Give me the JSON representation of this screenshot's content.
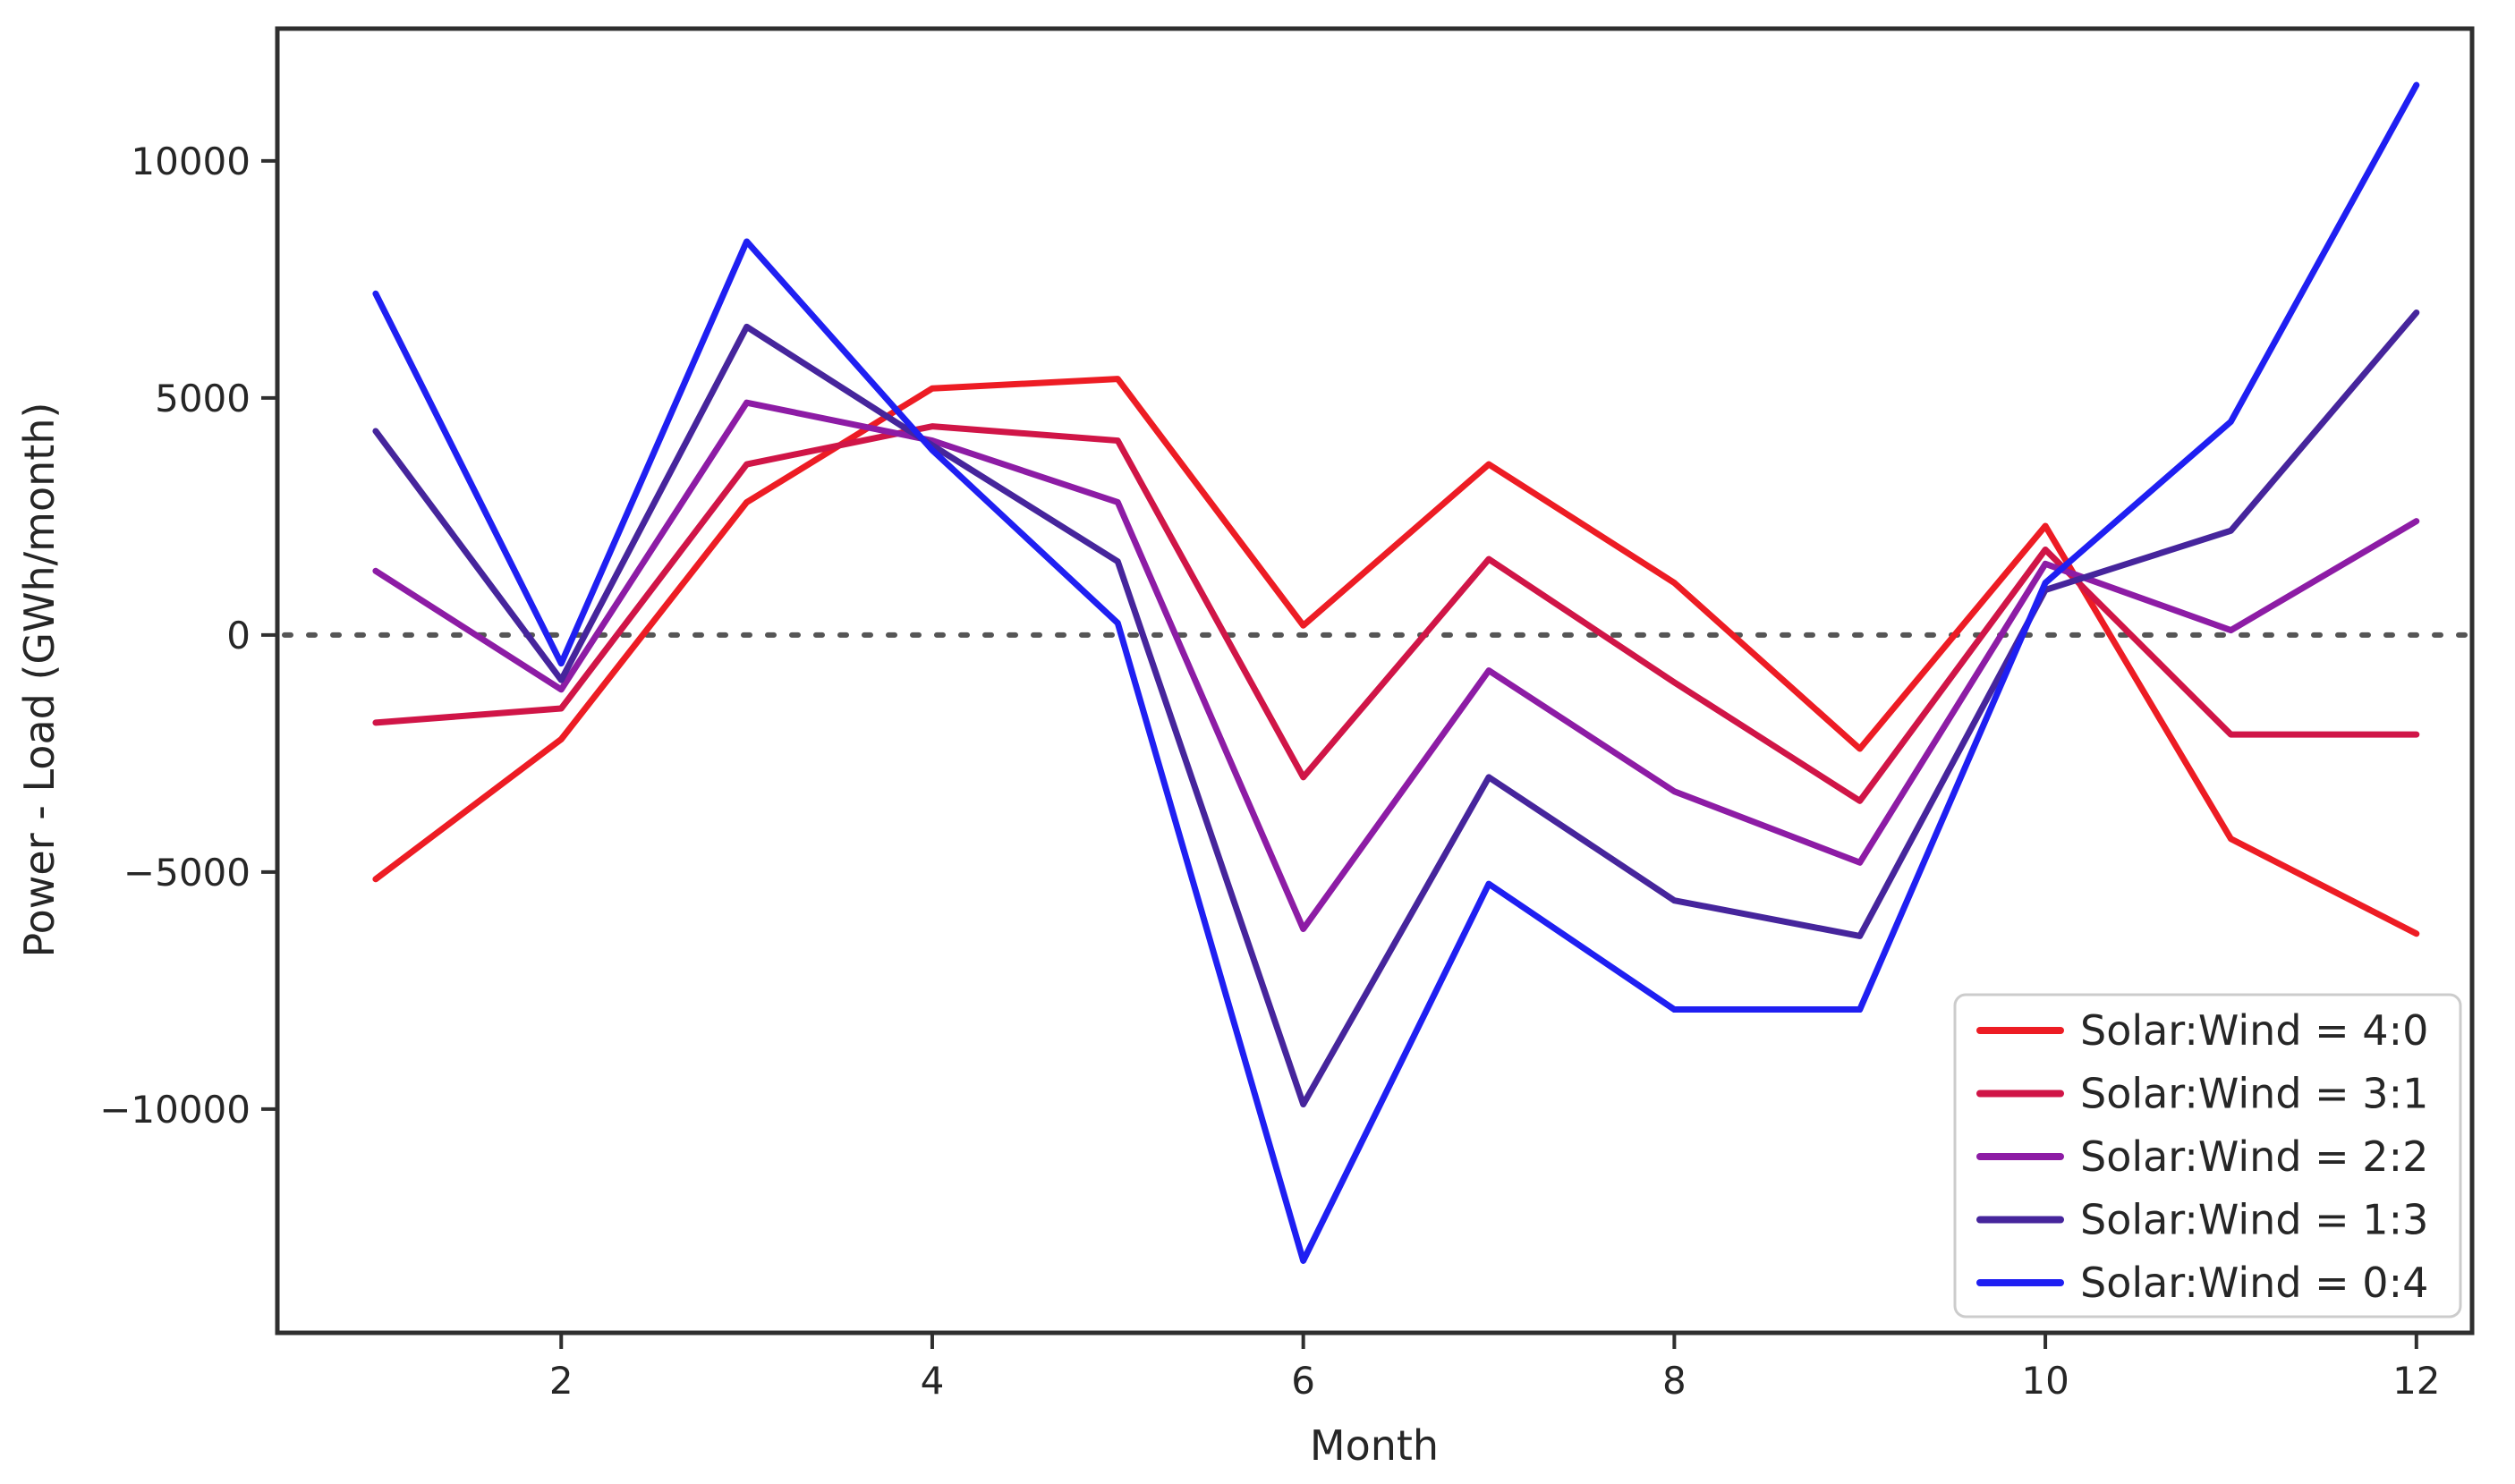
{
  "chart_data": {
    "type": "line",
    "title": "",
    "xlabel": "Month",
    "ylabel": "Power - Load (GWh/month)",
    "x": [
      1,
      2,
      3,
      4,
      5,
      6,
      7,
      8,
      9,
      10,
      11,
      12
    ],
    "xticks": [
      2,
      4,
      6,
      8,
      10,
      12
    ],
    "yticks": [
      10000,
      5000,
      0,
      -5000,
      -10000
    ],
    "xlim": [
      0.47,
      12.3
    ],
    "ylim": [
      -14720,
      12790
    ],
    "grid": false,
    "zero_line": {
      "y": 0,
      "style": "dotted",
      "color": "#555555"
    },
    "legend_position": "lower right",
    "frame_color": "#2f2f2f",
    "background_color": "#ffffff",
    "series": [
      {
        "name": "Solar:Wind = 4:0",
        "color": "#ed1c24",
        "values": [
          -5150,
          -2200,
          2800,
          5200,
          5400,
          200,
          3600,
          1100,
          -2400,
          2300,
          -4300,
          -6300
        ]
      },
      {
        "name": "Solar:Wind = 3:1",
        "color": "#d01547",
        "values": [
          -1850,
          -1550,
          3600,
          4400,
          4100,
          -3000,
          1600,
          -1000,
          -3500,
          1800,
          -2100,
          -2100
        ]
      },
      {
        "name": "Solar:Wind = 2:2",
        "color": "#8d1ca5",
        "values": [
          1350,
          -1150,
          4900,
          4100,
          2800,
          -6200,
          -750,
          -3300,
          -4800,
          1500,
          100,
          2400
        ]
      },
      {
        "name": "Solar:Wind = 1:3",
        "color": "#46259c",
        "values": [
          4300,
          -950,
          6500,
          4000,
          1550,
          -9900,
          -3000,
          -5600,
          -6350,
          950,
          2200,
          6800
        ]
      },
      {
        "name": "Solar:Wind = 0:4",
        "color": "#1f1ff2",
        "values": [
          7200,
          -600,
          8300,
          3900,
          250,
          -13200,
          -5250,
          -7900,
          -7900,
          1100,
          4500,
          11600
        ]
      }
    ]
  }
}
